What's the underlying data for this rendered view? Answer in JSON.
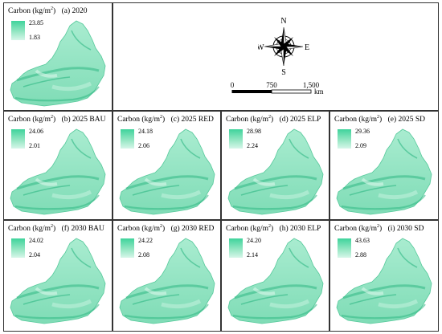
{
  "legend_title_prefix": "Carbon (kg/m",
  "legend_title_sup": "2",
  "legend_title_suffix": ")",
  "panels": [
    {
      "id": "a",
      "label": "(a) 2020",
      "max": "23.85",
      "min": "1.83"
    },
    {
      "id": "b",
      "label": "(b) 2025 BAU",
      "max": "24.06",
      "min": "2.01"
    },
    {
      "id": "c",
      "label": "(c) 2025 RED",
      "max": "24.18",
      "min": "2.06"
    },
    {
      "id": "d",
      "label": "(d) 2025 ELP",
      "max": "28.98",
      "min": "2.24"
    },
    {
      "id": "e",
      "label": "(e) 2025 SD",
      "max": "29.36",
      "min": "2.09"
    },
    {
      "id": "f",
      "label": "(f) 2030 BAU",
      "max": "24.02",
      "min": "2.04"
    },
    {
      "id": "g",
      "label": "(g) 2030 RED",
      "max": "24.22",
      "min": "2.08"
    },
    {
      "id": "h",
      "label": "(h) 2030 ELP",
      "max": "24.20",
      "min": "2.14"
    },
    {
      "id": "i",
      "label": "(i) 2030 SD",
      "max": "43.63",
      "min": "2.88"
    }
  ],
  "compass": {
    "n": "N",
    "s": "S",
    "e": "E",
    "w": "W"
  },
  "scale_bar": {
    "ticks": [
      "0",
      "750",
      "1,500"
    ],
    "unit": "km"
  },
  "colors": {
    "high": "#3fd39c",
    "low": "#d6f6e9",
    "border": "#333333"
  }
}
